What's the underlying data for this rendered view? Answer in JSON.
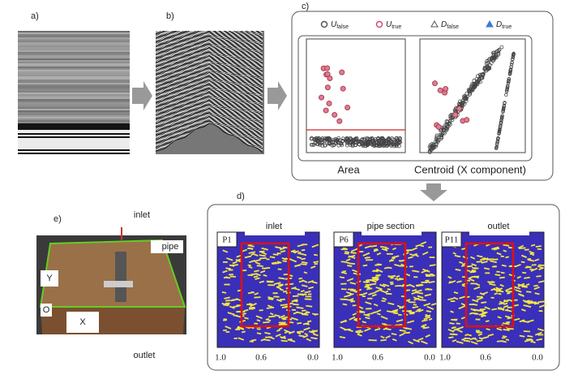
{
  "panels": {
    "a": {
      "label": "a)"
    },
    "b": {
      "label": "b)"
    },
    "c": {
      "label": "c)",
      "legend": [
        {
          "symbol": "U",
          "subscript": "false"
        },
        {
          "symbol": "U",
          "subscript": "true"
        },
        {
          "symbol": "D",
          "subscript": "false"
        },
        {
          "symbol": "D",
          "subscript": "true"
        }
      ],
      "plots": [
        {
          "title": "Area"
        },
        {
          "title": "Centroid (X component)"
        }
      ]
    },
    "d": {
      "label": "d)",
      "subpanels": [
        {
          "id": "P1",
          "title": "inlet",
          "ticks": [
            "1.0",
            "0.6",
            "0.0"
          ]
        },
        {
          "id": "P6",
          "title": "pipe section",
          "ticks": [
            "1.0",
            "0.6",
            "0.0"
          ]
        },
        {
          "id": "P11",
          "title": "outlet",
          "ticks": [
            "1.0",
            "0.6",
            "0.0"
          ]
        }
      ]
    },
    "e": {
      "label": "e)",
      "annotations": {
        "inlet": "inlet",
        "pipe": "pipe",
        "y": "Y",
        "origin": "O",
        "x": "X",
        "outlet": "outlet"
      }
    }
  }
}
